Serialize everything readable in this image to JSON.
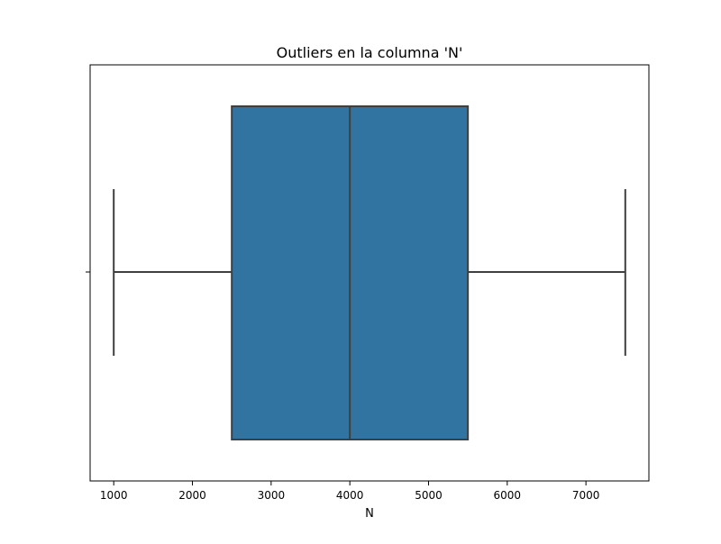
{
  "chart_data": {
    "type": "box",
    "title": "Outliers en la columna 'N'",
    "xlabel": "N",
    "ylabel": "",
    "orientation": "horizontal",
    "xlim": [
      700,
      7800
    ],
    "x_ticks": [
      1000,
      2000,
      3000,
      4000,
      5000,
      6000,
      7000
    ],
    "x_tick_labels": [
      "1000",
      "2000",
      "3000",
      "4000",
      "5000",
      "6000",
      "7000"
    ],
    "box": {
      "whisker_low": 1000,
      "q1": 2500,
      "median": 4000,
      "q3": 5500,
      "whisker_high": 7500
    },
    "outliers": [],
    "grid": false,
    "legend": "none",
    "colors": {
      "box_fill": "#3274a1",
      "lines": "#3f3f3f",
      "axes": "#000000"
    }
  }
}
